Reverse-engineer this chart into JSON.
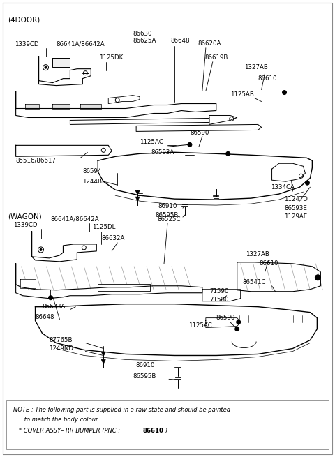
{
  "bg_color": "#ffffff",
  "fig_width": 4.8,
  "fig_height": 6.55,
  "dpi": 100,
  "text_color": "#000000",
  "line_color": "#000000",
  "note_line1": "NOTE : The following part is supplied in a raw state and should be painted",
  "note_line2": "      to match the body colour.",
  "note_line3": "   * COVER ASSY– RR BUMPER (PNC : ",
  "note_bold": "86610",
  "note_close": ")"
}
